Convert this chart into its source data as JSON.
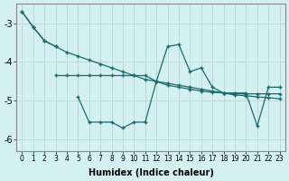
{
  "x": [
    0,
    1,
    2,
    3,
    4,
    5,
    6,
    7,
    8,
    9,
    10,
    11,
    12,
    13,
    14,
    15,
    16,
    17,
    18,
    19,
    20,
    21,
    22,
    23
  ],
  "line_straight": [
    -2.7,
    -3.1,
    -3.45,
    -3.6,
    -3.75,
    -3.85,
    -3.95,
    -4.05,
    -4.15,
    -4.25,
    -4.35,
    -4.45,
    -4.5,
    -4.55,
    -4.6,
    -4.65,
    -4.7,
    -4.75,
    -4.8,
    -4.85,
    -4.87,
    -4.9,
    -4.92,
    -4.95
  ],
  "line_flat": [
    null,
    null,
    null,
    -4.35,
    -4.35,
    -4.35,
    -4.35,
    -4.35,
    -4.35,
    -4.35,
    -4.35,
    -4.35,
    -4.5,
    -4.6,
    -4.65,
    -4.7,
    -4.75,
    -4.78,
    -4.8,
    -4.82,
    -4.82,
    -4.82,
    -4.82,
    -4.82
  ],
  "line_jagged": [
    -2.7,
    -3.1,
    -3.45,
    -3.6,
    null,
    -4.9,
    -5.55,
    -5.55,
    -5.55,
    -5.7,
    -5.55,
    -5.55,
    -4.5,
    -3.6,
    -3.55,
    -4.25,
    -4.15,
    -4.65,
    -4.8,
    -4.8,
    -4.8,
    -5.65,
    -4.65,
    -4.65
  ],
  "xlabel": "Humidex (Indice chaleur)",
  "xlim": [
    -0.5,
    23.5
  ],
  "ylim": [
    -6.3,
    -2.5
  ],
  "yticks": [
    -6,
    -5,
    -4,
    -3
  ],
  "xticks": [
    0,
    1,
    2,
    3,
    4,
    5,
    6,
    7,
    8,
    9,
    10,
    11,
    12,
    13,
    14,
    15,
    16,
    17,
    18,
    19,
    20,
    21,
    22,
    23
  ],
  "line_color": "#1a6b6b",
  "bg_color": "#d4f0f0",
  "grid_color": "#bcd8d8",
  "marker": "+"
}
